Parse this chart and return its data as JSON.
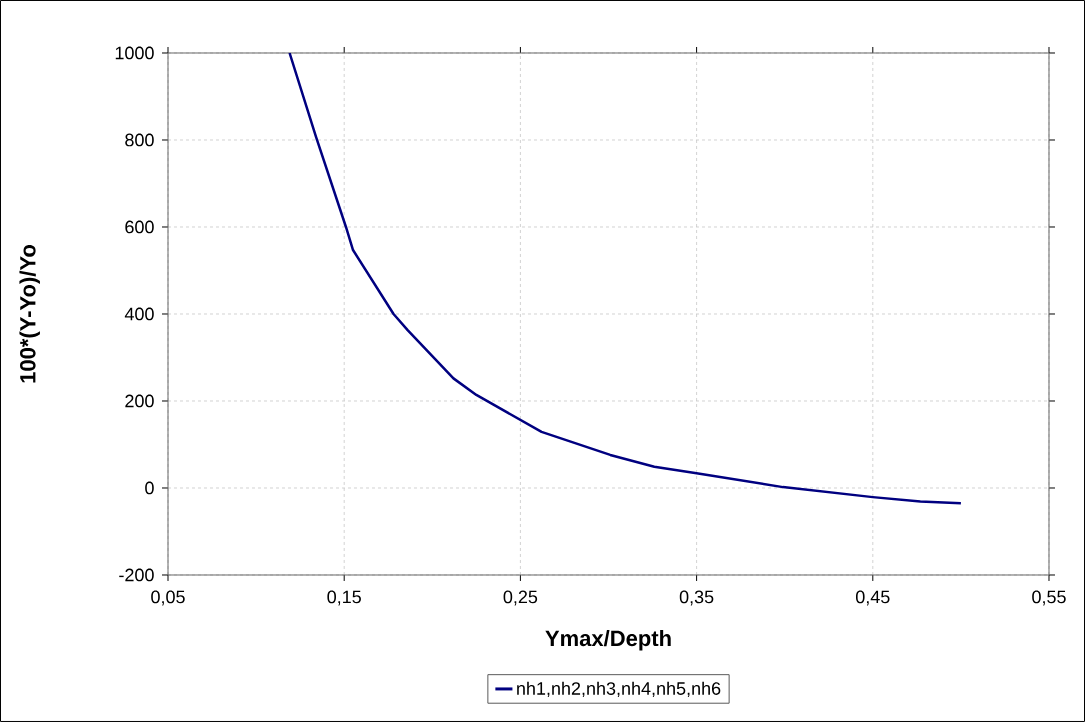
{
  "chart_data": {
    "type": "line",
    "xlabel": "Ymax/Depth",
    "ylabel": "100*(Y-Yo)/Yo",
    "x": [
      0.119,
      0.134,
      0.151,
      0.155,
      0.178,
      0.186,
      0.212,
      0.225,
      0.262,
      0.301,
      0.326,
      0.35,
      0.399,
      0.45,
      0.477,
      0.5
    ],
    "series": [
      {
        "name": "nh1,nh2,nh3,nh4,nh5,nh6",
        "color": "#000080",
        "values": [
          1000,
          807,
          600,
          547,
          400,
          363,
          252,
          214,
          129,
          76,
          49,
          34,
          2,
          -21,
          -31,
          -35
        ]
      }
    ],
    "xlim": [
      0.05,
      0.55
    ],
    "xticks": [
      {
        "value": 0.05,
        "label": "0,05"
      },
      {
        "value": 0.15,
        "label": "0,15"
      },
      {
        "value": 0.25,
        "label": "0,25"
      },
      {
        "value": 0.35,
        "label": "0,35"
      },
      {
        "value": 0.45,
        "label": "0,45"
      },
      {
        "value": 0.55,
        "label": "0,55"
      }
    ],
    "ylim": [
      -200,
      1000
    ],
    "yticks": [
      -200,
      0,
      200,
      400,
      600,
      800,
      1000
    ],
    "grid": true,
    "legend": "bottom",
    "marker": "none",
    "line_style": "solid"
  }
}
